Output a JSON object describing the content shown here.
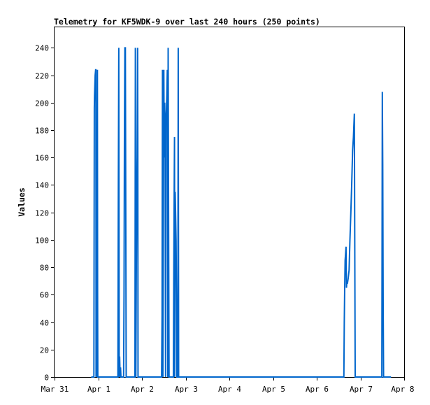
{
  "chart_data": {
    "type": "line",
    "title": "Telemetry for KF5WDK-9 over last 240 hours (250 points)",
    "xlabel": "",
    "ylabel": "Values",
    "x_ticks": [
      "Mar 31",
      "Apr 1",
      "Apr 2",
      "Apr 3",
      "Apr 4",
      "Apr 5",
      "Apr 6",
      "Apr 7",
      "Apr 8"
    ],
    "xlim": [
      0,
      8
    ],
    "ylim": [
      0,
      255
    ],
    "y_ticks": [
      0,
      20,
      40,
      60,
      80,
      100,
      120,
      140,
      160,
      180,
      200,
      220,
      240
    ],
    "grid": false,
    "color": "#0066cc",
    "series": [
      {
        "name": "",
        "points": [
          [
            0.84,
            0
          ],
          [
            0.9,
            0
          ],
          [
            0.91,
            196
          ],
          [
            0.915,
            205
          ],
          [
            0.92,
            210
          ],
          [
            0.93,
            220
          ],
          [
            0.94,
            224
          ],
          [
            0.945,
            224
          ],
          [
            0.95,
            0
          ],
          [
            0.955,
            110
          ],
          [
            0.965,
            143
          ],
          [
            0.97,
            0
          ],
          [
            0.98,
            224
          ],
          [
            0.985,
            62
          ],
          [
            0.99,
            0
          ],
          [
            1.45,
            0
          ],
          [
            1.46,
            143
          ],
          [
            1.47,
            240
          ],
          [
            1.48,
            0
          ],
          [
            1.49,
            15
          ],
          [
            1.5,
            0
          ],
          [
            1.51,
            7
          ],
          [
            1.52,
            0
          ],
          [
            1.58,
            0
          ],
          [
            1.59,
            60
          ],
          [
            1.6,
            177
          ],
          [
            1.61,
            240
          ],
          [
            1.62,
            240
          ],
          [
            1.63,
            120
          ],
          [
            1.64,
            0
          ],
          [
            1.84,
            0
          ],
          [
            1.85,
            240
          ],
          [
            1.86,
            0
          ],
          [
            1.87,
            70
          ],
          [
            1.88,
            135
          ],
          [
            1.89,
            160
          ],
          [
            1.9,
            240
          ],
          [
            1.905,
            175
          ],
          [
            1.91,
            0
          ],
          [
            1.92,
            0
          ],
          [
            2.45,
            0
          ],
          [
            2.46,
            45
          ],
          [
            2.47,
            224
          ],
          [
            2.48,
            0
          ],
          [
            2.5,
            224
          ],
          [
            2.51,
            160
          ],
          [
            2.52,
            200
          ],
          [
            2.53,
            185
          ],
          [
            2.54,
            0
          ],
          [
            2.55,
            185
          ],
          [
            2.57,
            205
          ],
          [
            2.58,
            224
          ],
          [
            2.59,
            0
          ],
          [
            2.6,
            240
          ],
          [
            2.61,
            120
          ],
          [
            2.62,
            0
          ],
          [
            2.72,
            0
          ],
          [
            2.73,
            80
          ],
          [
            2.74,
            150
          ],
          [
            2.745,
            175
          ],
          [
            2.75,
            0
          ],
          [
            2.76,
            135
          ],
          [
            2.77,
            120
          ],
          [
            2.78,
            100
          ],
          [
            2.79,
            60
          ],
          [
            2.8,
            0
          ],
          [
            2.82,
            0
          ],
          [
            2.83,
            240
          ],
          [
            2.84,
            0
          ],
          [
            6.6,
            0
          ],
          [
            6.62,
            0
          ],
          [
            6.63,
            40
          ],
          [
            6.64,
            65
          ],
          [
            6.65,
            85
          ],
          [
            6.66,
            90
          ],
          [
            6.67,
            95
          ],
          [
            6.68,
            65
          ],
          [
            6.69,
            70
          ],
          [
            6.7,
            68
          ],
          [
            6.72,
            72
          ],
          [
            6.74,
            78
          ],
          [
            6.76,
            100
          ],
          [
            6.78,
            120
          ],
          [
            6.8,
            140
          ],
          [
            6.82,
            165
          ],
          [
            6.84,
            175
          ],
          [
            6.86,
            192
          ],
          [
            6.87,
            97
          ],
          [
            6.88,
            0
          ],
          [
            6.9,
            0
          ],
          [
            7.48,
            0
          ],
          [
            7.49,
            0
          ],
          [
            7.5,
            208
          ],
          [
            7.51,
            155
          ],
          [
            7.52,
            52
          ],
          [
            7.53,
            0
          ],
          [
            7.7,
            0
          ]
        ]
      }
    ]
  }
}
